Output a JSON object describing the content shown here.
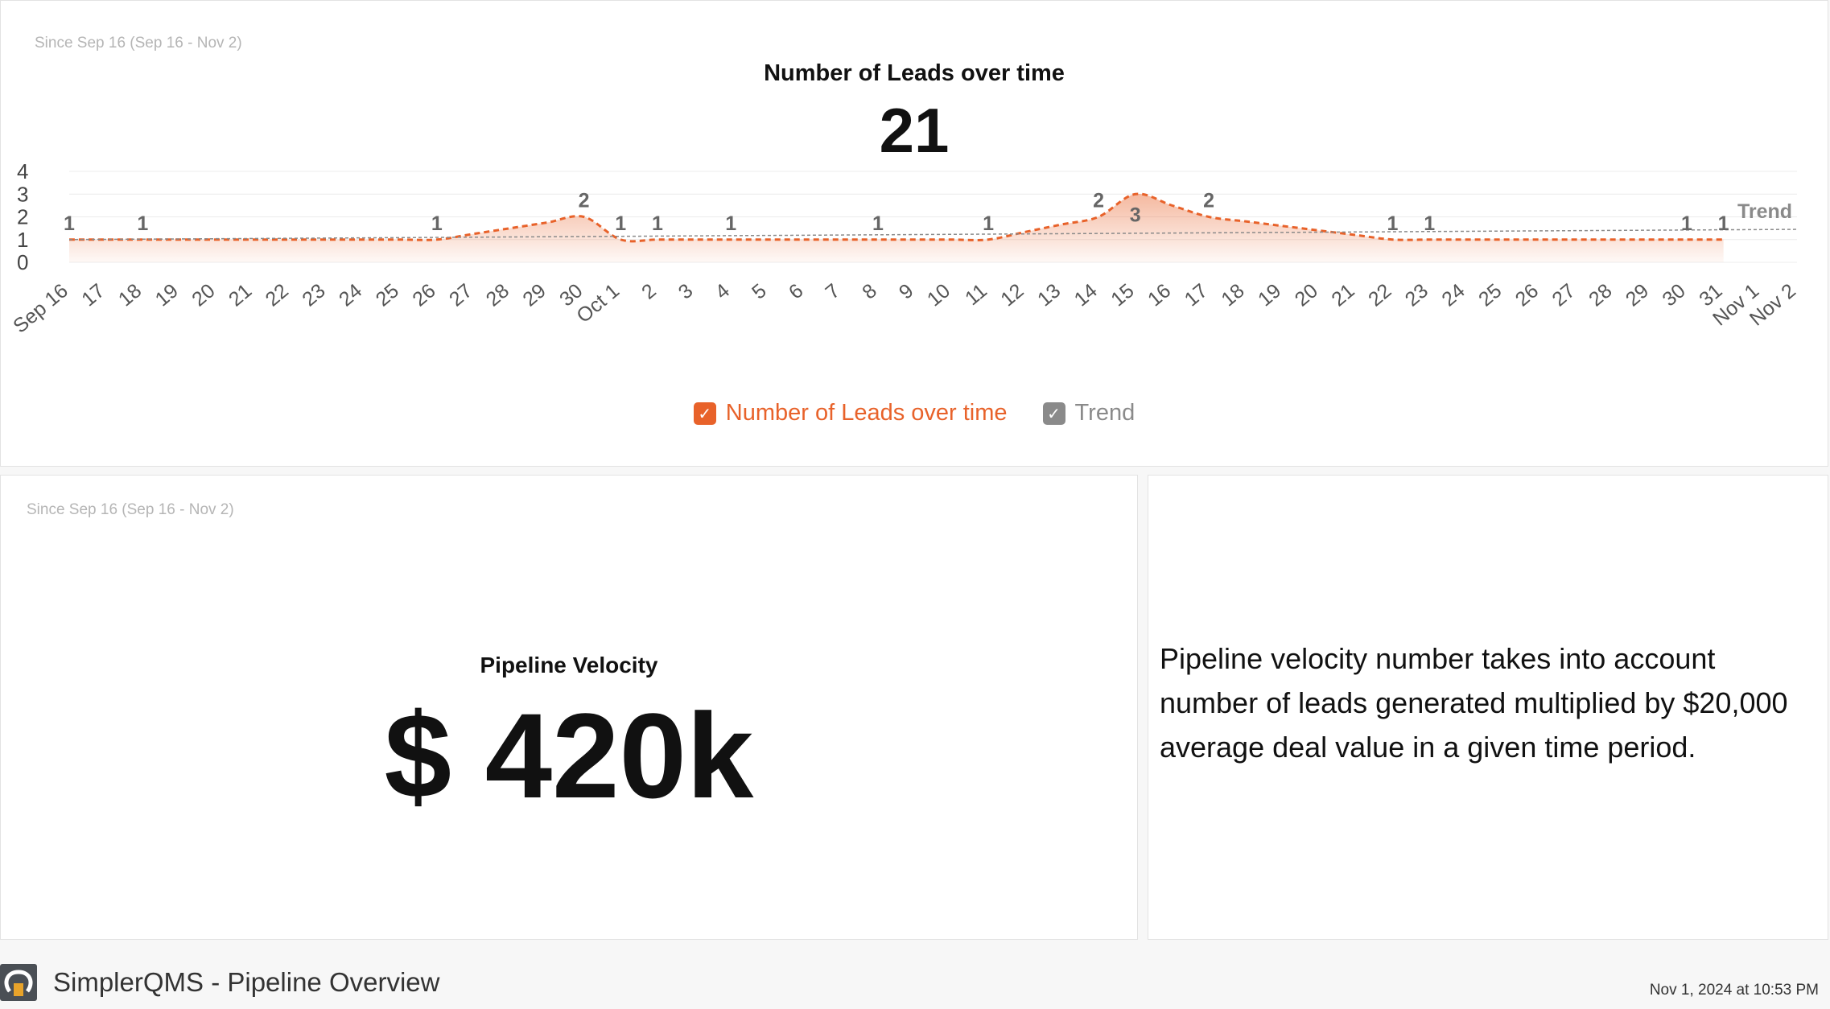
{
  "chart_panel": {
    "period": "Since Sep 16 (Sep 16 - Nov 2)",
    "title": "Number of Leads over time",
    "total": "21"
  },
  "chart_data": {
    "type": "area",
    "title": "Number of Leads over time",
    "categories": [
      "Sep 16",
      "17",
      "18",
      "19",
      "20",
      "21",
      "22",
      "23",
      "24",
      "25",
      "26",
      "27",
      "28",
      "29",
      "30",
      "Oct 1",
      "2",
      "3",
      "4",
      "5",
      "6",
      "7",
      "8",
      "9",
      "10",
      "11",
      "12",
      "13",
      "14",
      "15",
      "16",
      "17",
      "18",
      "19",
      "20",
      "21",
      "22",
      "23",
      "24",
      "25",
      "26",
      "27",
      "28",
      "29",
      "30",
      "31",
      "Nov 1",
      "Nov 2"
    ],
    "series": [
      {
        "name": "Number of Leads over time",
        "color": "#e8622a",
        "values": [
          1,
          null,
          1,
          null,
          null,
          null,
          null,
          null,
          null,
          null,
          1,
          null,
          null,
          null,
          2,
          1,
          1,
          null,
          1,
          null,
          null,
          null,
          1,
          null,
          null,
          1,
          null,
          null,
          2,
          3,
          null,
          2,
          null,
          null,
          null,
          null,
          1,
          1,
          null,
          null,
          null,
          null,
          null,
          null,
          1,
          1,
          null,
          null
        ]
      },
      {
        "name": "Trend",
        "color": "#8a8a8a",
        "values_start_end": [
          1.0,
          1.45
        ]
      }
    ],
    "ylim": [
      0,
      4
    ],
    "yticks": [
      "0",
      "1",
      "2",
      "3",
      "4"
    ],
    "trend_label": "Trend",
    "grid": true,
    "legend": "bottom-center"
  },
  "legend": {
    "leads_label": "Number of Leads over time",
    "trend_label": "Trend",
    "check_glyph": "✓"
  },
  "velocity_panel": {
    "period": "Since Sep 16 (Sep 16 - Nov 2)",
    "title": "Pipeline Velocity",
    "value": "$ 420k"
  },
  "note_panel": {
    "text": "Pipeline velocity number takes into account number of leads generated multiplied by $20,000 average deal value in a given time period."
  },
  "footer": {
    "title": "SimplerQMS - Pipeline Overview",
    "timestamp": "Nov 1, 2024 at 10:53 PM",
    "logo_icon": "simplerqms-logo-icon"
  }
}
